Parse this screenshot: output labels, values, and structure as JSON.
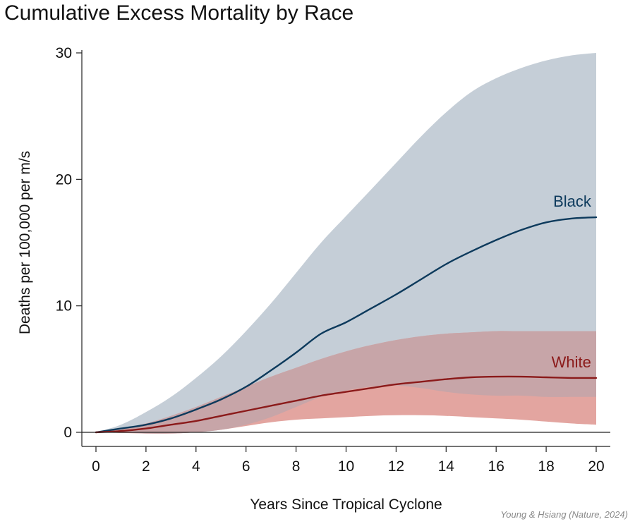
{
  "chart_data": {
    "type": "line",
    "title": "Cumulative Excess Mortality by Race",
    "xlabel": "Years Since Tropical Cyclone",
    "ylabel": "Deaths per 100,000 per m/s",
    "xlim": [
      0,
      20
    ],
    "ylim": [
      0,
      30
    ],
    "xticks": [
      0,
      2,
      4,
      6,
      8,
      10,
      12,
      14,
      16,
      18,
      20
    ],
    "yticks": [
      0,
      10,
      20,
      30
    ],
    "x": [
      0,
      1,
      2,
      3,
      4,
      5,
      6,
      7,
      8,
      9,
      10,
      11,
      12,
      13,
      14,
      15,
      16,
      17,
      18,
      19,
      20
    ],
    "series": [
      {
        "name": "Black",
        "color": "#0d3a5c",
        "band_color": "#c5ced7",
        "values": [
          0,
          0.3,
          0.6,
          1.1,
          1.8,
          2.6,
          3.6,
          4.9,
          6.3,
          7.8,
          8.7,
          9.8,
          10.9,
          12.1,
          13.3,
          14.3,
          15.2,
          16.0,
          16.6,
          16.9,
          17.0
        ],
        "upper": [
          0,
          0.6,
          1.6,
          2.8,
          4.3,
          6.0,
          8.0,
          10.2,
          12.6,
          15.0,
          17.1,
          19.2,
          21.3,
          23.4,
          25.3,
          26.9,
          28.0,
          28.8,
          29.4,
          29.8,
          30.0
        ],
        "lower": [
          0,
          0.0,
          -0.1,
          -0.1,
          0.0,
          0.2,
          0.6,
          1.2,
          2.0,
          2.8,
          3.3,
          3.6,
          3.7,
          3.5,
          3.2,
          3.0,
          2.9,
          2.9,
          2.8,
          2.8,
          2.8
        ]
      },
      {
        "name": "White",
        "color": "#8b1a1a",
        "band_color": "#e3a5a0",
        "values": [
          0,
          0.1,
          0.3,
          0.6,
          0.9,
          1.3,
          1.7,
          2.1,
          2.5,
          2.9,
          3.2,
          3.5,
          3.8,
          4.0,
          4.2,
          4.35,
          4.4,
          4.4,
          4.35,
          4.3,
          4.3
        ],
        "upper": [
          0,
          0.3,
          0.7,
          1.3,
          2.0,
          2.8,
          3.6,
          4.4,
          5.1,
          5.8,
          6.4,
          6.9,
          7.3,
          7.6,
          7.8,
          7.9,
          8.0,
          8.0,
          8.0,
          8.0,
          8.0
        ],
        "lower": [
          0,
          -0.05,
          -0.1,
          -0.1,
          0.0,
          0.2,
          0.5,
          0.8,
          1.0,
          1.1,
          1.2,
          1.3,
          1.35,
          1.35,
          1.3,
          1.2,
          1.1,
          1.0,
          0.85,
          0.7,
          0.6
        ]
      }
    ],
    "overlap_color": "#c7a5a8"
  },
  "credit": "Young & Hsiang (Nature, 2024)"
}
